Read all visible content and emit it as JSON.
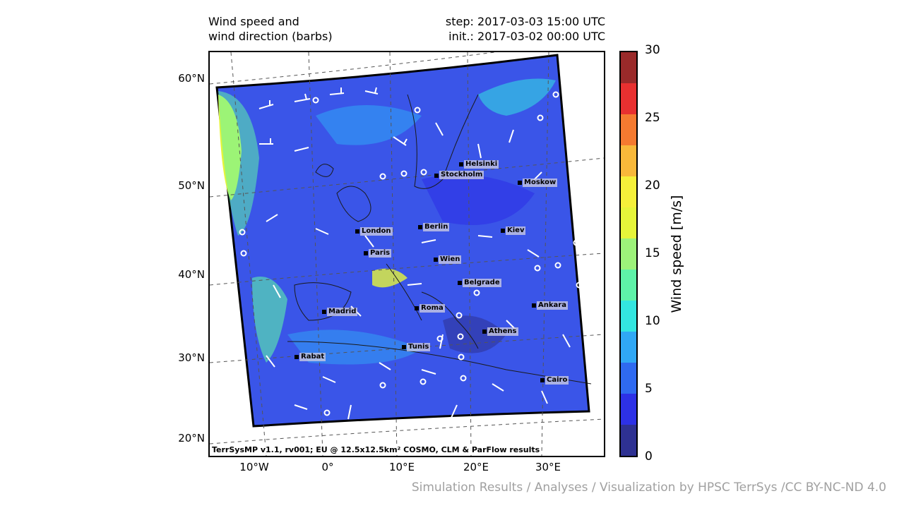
{
  "title_left": [
    "Wind speed and",
    "wind direction (barbs)"
  ],
  "title_right": [
    "step: 2017-03-03 15:00 UTC",
    "init.: 2017-03-02 00:00 UTC"
  ],
  "latitude_labels": [
    "60°N",
    "50°N",
    "40°N",
    "30°N",
    "20°N"
  ],
  "longitude_labels": [
    "10°W",
    "0°",
    "10°E",
    "20°E",
    "30°E"
  ],
  "cities": [
    {
      "name": "Helsinki"
    },
    {
      "name": "Stockholm"
    },
    {
      "name": "Moskow"
    },
    {
      "name": "London"
    },
    {
      "name": "Berlin"
    },
    {
      "name": "Kiev"
    },
    {
      "name": "Paris"
    },
    {
      "name": "Wien"
    },
    {
      "name": "Belgrade"
    },
    {
      "name": "Madrid"
    },
    {
      "name": "Roma"
    },
    {
      "name": "Ankara"
    },
    {
      "name": "Athens"
    },
    {
      "name": "Tunis"
    },
    {
      "name": "Rabat"
    },
    {
      "name": "Cairo"
    }
  ],
  "footer": "TerrSysMP v1.1, rv001; EU @ 12.5x12.5km² COSMO, CLM & ParFlow results",
  "colorbar": {
    "label": "Wind speed [m/s]",
    "ticks": [
      "30",
      "25",
      "20",
      "15",
      "10",
      "5",
      "0"
    ],
    "levels": [
      0,
      2.5,
      5,
      7.5,
      10,
      12.5,
      15,
      17.5,
      20,
      22.5,
      25,
      27.5,
      30
    ],
    "colors": [
      "#2e3192",
      "#2d31e6",
      "#2f6af0",
      "#30a8f5",
      "#33e6e0",
      "#5ef2a8",
      "#9df27a",
      "#e6f53a",
      "#f5f03a",
      "#f8b83a",
      "#f57a30",
      "#e83030",
      "#9a2a2a"
    ]
  },
  "credit": "Simulation Results / Analyses / Visualization by HPSC TerrSys /CC BY-NC-ND 4.0"
}
